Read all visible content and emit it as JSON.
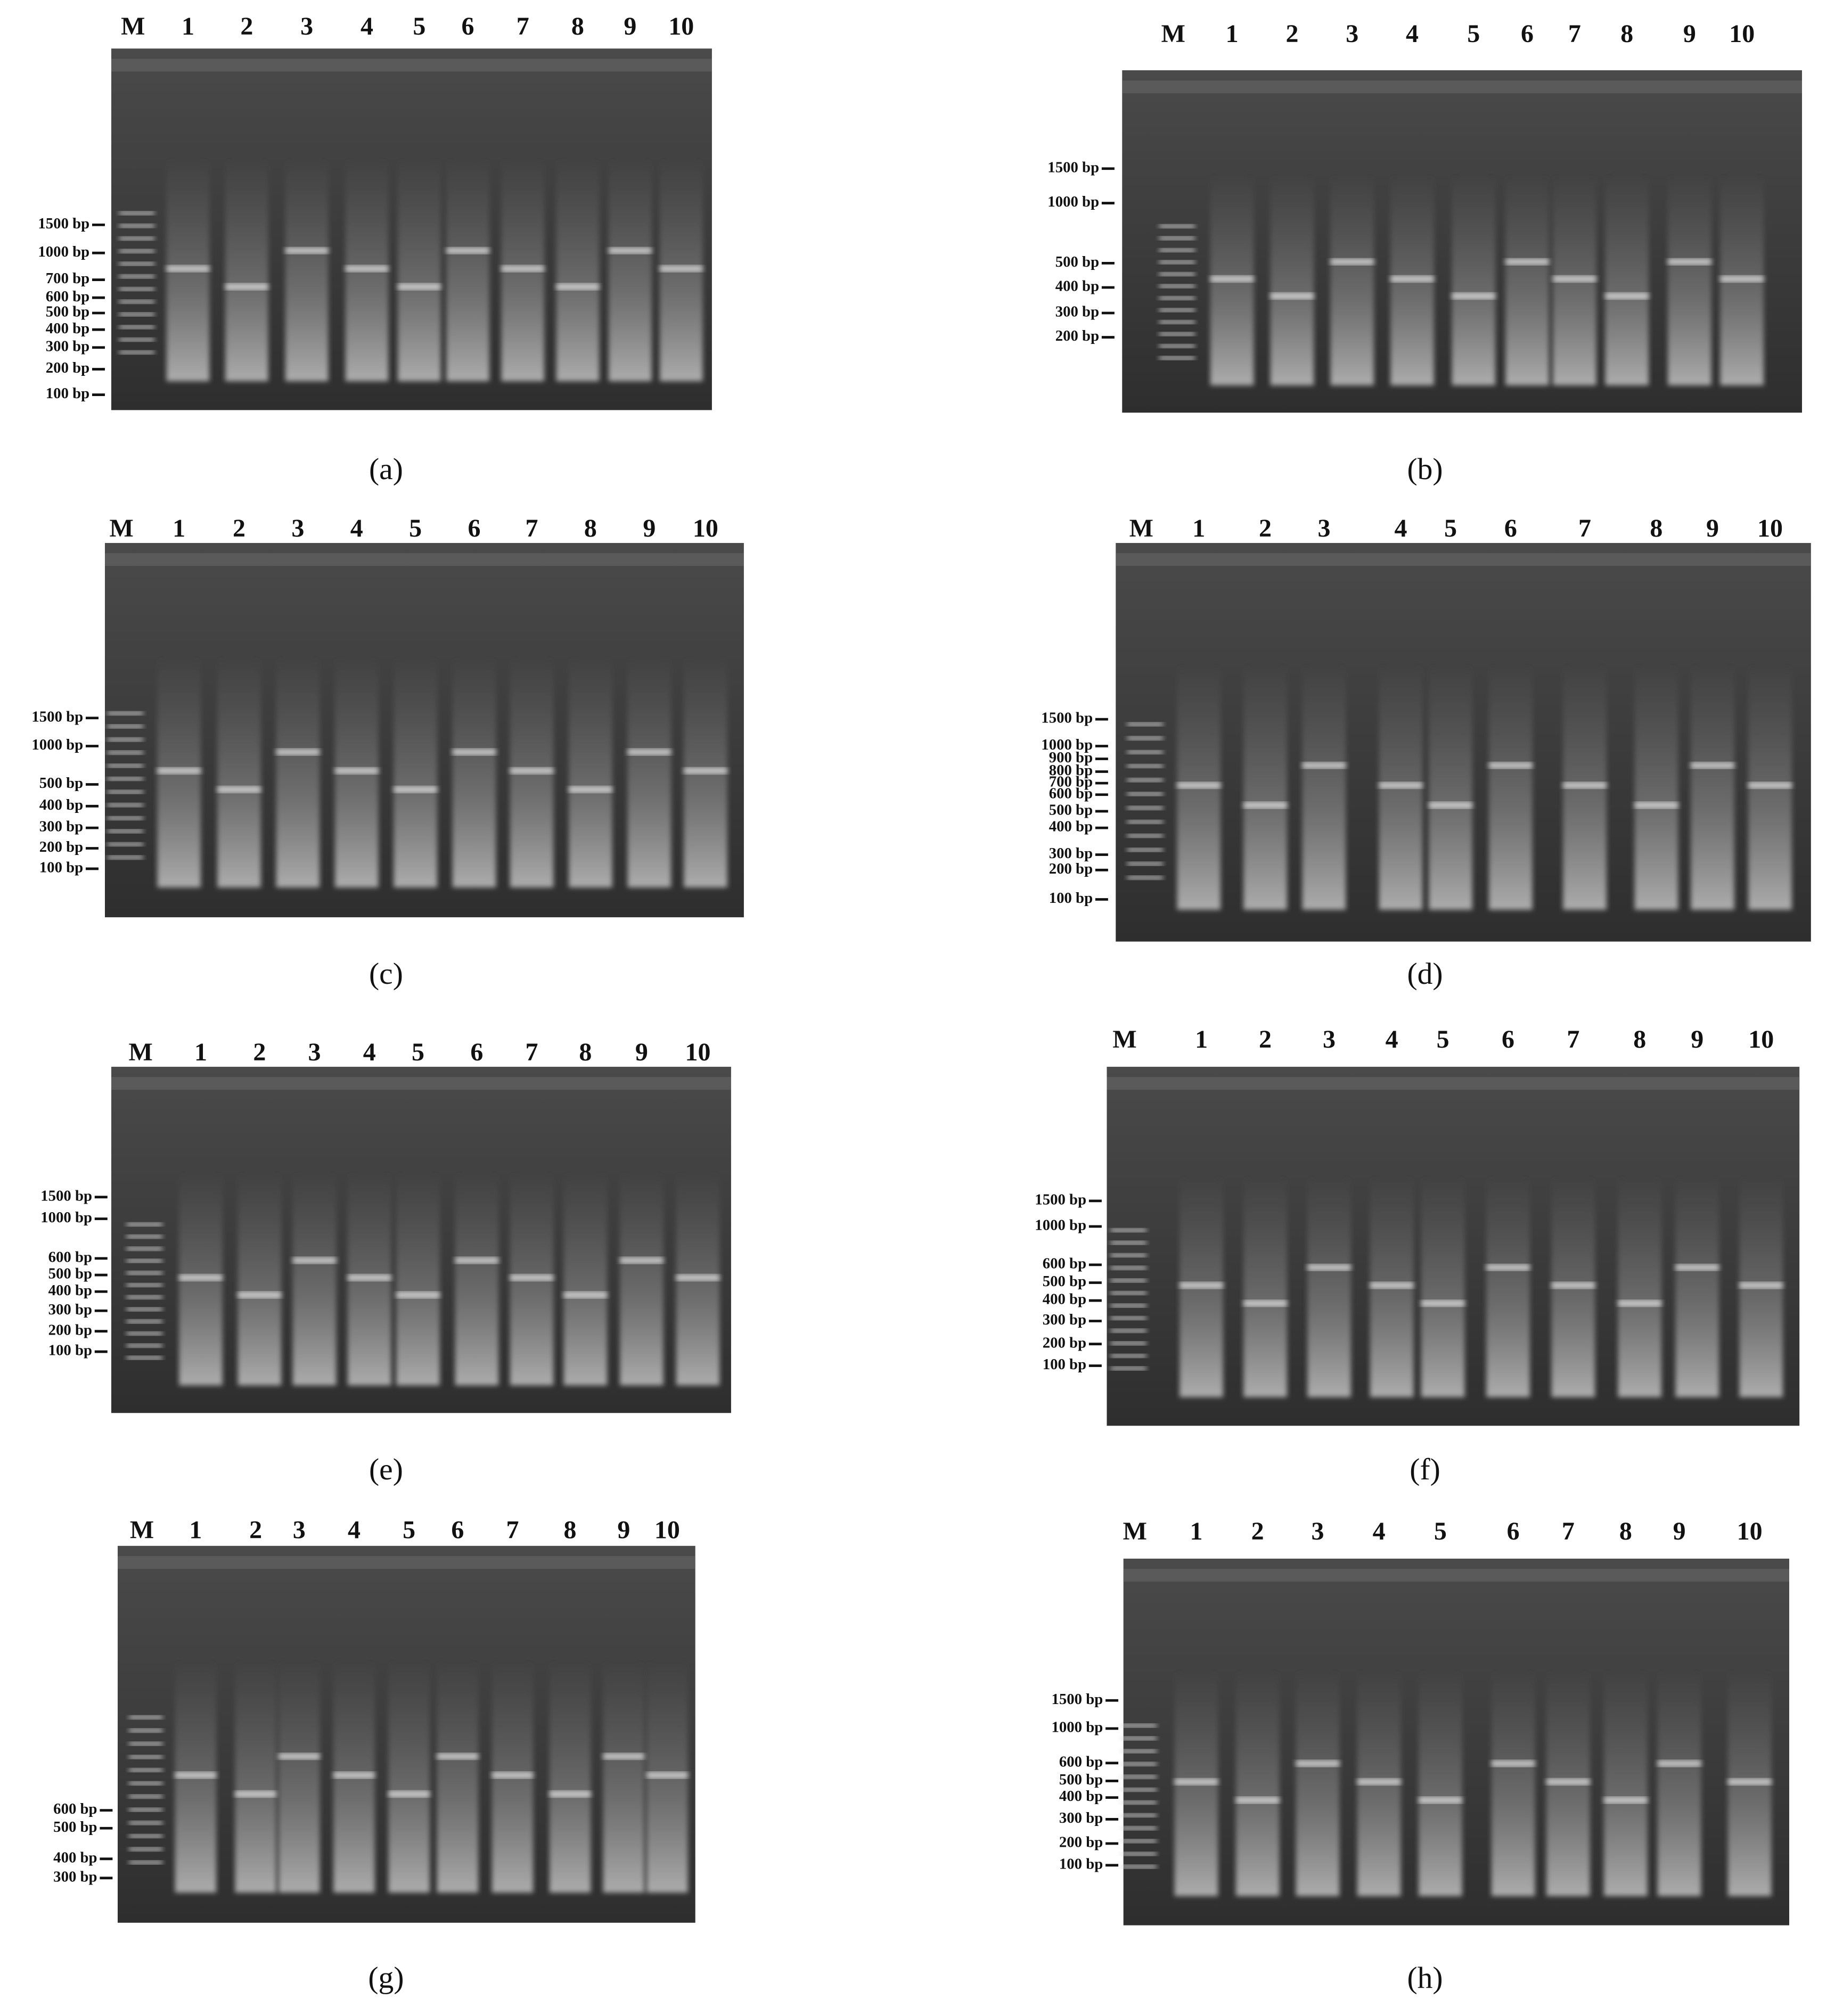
{
  "panels": [
    {
      "caption": "(a)",
      "lanes": [
        "M",
        "1",
        "2",
        "3",
        "4",
        "5",
        "6",
        "7",
        "8",
        "9",
        "10"
      ],
      "markers": [
        "1500 bp",
        "1000 bp",
        "700 bp",
        "600 bp",
        "500 bp",
        "400 bp",
        "300 bp",
        "200 bp",
        "100 bp"
      ]
    },
    {
      "caption": "(b)",
      "lanes": [
        "M",
        "1",
        "2",
        "3",
        "4",
        "5",
        "6",
        "7",
        "8",
        "9",
        "10"
      ],
      "markers": [
        "1500 bp",
        "1000 bp",
        "500 bp",
        "400 bp",
        "300 bp",
        "200 bp"
      ]
    },
    {
      "caption": "(c)",
      "lanes": [
        "M",
        "1",
        "2",
        "3",
        "4",
        "5",
        "6",
        "7",
        "8",
        "9",
        "10"
      ],
      "markers": [
        "1500 bp",
        "1000 bp",
        "500 bp",
        "400 bp",
        "300 bp",
        "200 bp",
        "100 bp"
      ]
    },
    {
      "caption": "(d)",
      "lanes": [
        "M",
        "1",
        "2",
        "3",
        "4",
        "5",
        "6",
        "7",
        "8",
        "9",
        "10"
      ],
      "markers": [
        "1500 bp",
        "1000 bp",
        "900 bp",
        "800 bp",
        "700 bp",
        "600 bp",
        "500 bp",
        "400 bp",
        "300 bp",
        "200 bp",
        "100 bp"
      ]
    },
    {
      "caption": "(e)",
      "lanes": [
        "M",
        "1",
        "2",
        "3",
        "4",
        "5",
        "6",
        "7",
        "8",
        "9",
        "10"
      ],
      "markers": [
        "1500 bp",
        "1000 bp",
        "600 bp",
        "500 bp",
        "400 bp",
        "300 bp",
        "200 bp",
        "100 bp"
      ]
    },
    {
      "caption": "(f)",
      "lanes": [
        "M",
        "1",
        "2",
        "3",
        "4",
        "5",
        "6",
        "7",
        "8",
        "9",
        "10"
      ],
      "markers": [
        "1500 bp",
        "1000 bp",
        "600 bp",
        "500 bp",
        "400 bp",
        "300 bp",
        "200 bp",
        "100 bp"
      ]
    },
    {
      "caption": "(g)",
      "lanes": [
        "M",
        "1",
        "2",
        "3",
        "4",
        "5",
        "6",
        "7",
        "8",
        "9",
        "10"
      ],
      "markers": [
        "600 bp",
        "500 bp",
        "400 bp",
        "300 bp"
      ]
    },
    {
      "caption": "(h)",
      "lanes": [
        "M",
        "1",
        "2",
        "3",
        "4",
        "5",
        "6",
        "7",
        "8",
        "9",
        "10"
      ],
      "markers": [
        "1500 bp",
        "1000 bp",
        "600 bp",
        "500 bp",
        "400 bp",
        "300 bp",
        "200 bp",
        "100 bp"
      ]
    }
  ]
}
